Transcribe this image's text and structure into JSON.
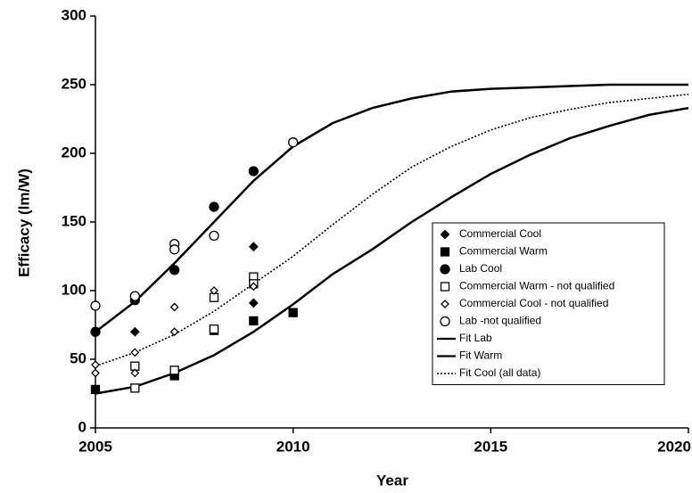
{
  "chart_data": {
    "type": "scatter",
    "x_label": "Year",
    "y_label": "Efficacy (lm/W)",
    "xlim": [
      2005,
      2020
    ],
    "xticks": [
      2005,
      2010,
      2015,
      2020
    ],
    "ylim": [
      0,
      300
    ],
    "yticks": [
      0,
      50,
      100,
      150,
      200,
      250,
      300
    ],
    "grid": false,
    "legend_position": "right",
    "series": [
      {
        "name": "Commercial Cool",
        "color": "#000000",
        "marker": "diamond",
        "filled": true,
        "x": [
          2006,
          2009,
          2009
        ],
        "values": [
          70,
          132,
          91
        ]
      },
      {
        "name": "Commercial Warm",
        "color": "#000000",
        "marker": "square",
        "filled": true,
        "x": [
          2005,
          2007,
          2008,
          2009,
          2010
        ],
        "values": [
          28,
          38,
          71,
          78,
          84
        ]
      },
      {
        "name": "Lab Cool",
        "color": "#000000",
        "marker": "circle",
        "filled": true,
        "x": [
          2005,
          2006,
          2007,
          2008,
          2009
        ],
        "values": [
          70,
          93,
          115,
          161,
          187
        ]
      },
      {
        "name": "Commercial Warm - not qualified",
        "color": "#000000",
        "marker": "square",
        "filled": false,
        "x": [
          2006,
          2006,
          2007,
          2008,
          2008,
          2009,
          2009
        ],
        "values": [
          29,
          45,
          42,
          72,
          95,
          110,
          105
        ]
      },
      {
        "name": "Commercial Cool - not qualified",
        "color": "#000000",
        "marker": "diamond",
        "filled": false,
        "x": [
          2005,
          2005,
          2006,
          2006,
          2007,
          2007,
          2008,
          2009
        ],
        "values": [
          46,
          40,
          40,
          55,
          88,
          70,
          100,
          103
        ]
      },
      {
        "name": "Lab -not qualified",
        "color": "#000000",
        "marker": "circle",
        "filled": false,
        "x": [
          2005,
          2006,
          2007,
          2007,
          2008,
          2010
        ],
        "values": [
          89,
          96,
          134,
          130,
          140,
          208
        ]
      },
      {
        "name": "Fit Lab",
        "color": "#000000",
        "line": "solid",
        "x": [
          2005,
          2006,
          2007,
          2008,
          2009,
          2010,
          2011,
          2012,
          2013,
          2014,
          2015,
          2016,
          2017,
          2018,
          2019,
          2020
        ],
        "values": [
          70,
          92,
          120,
          150,
          180,
          205,
          222,
          233,
          240,
          245,
          247,
          248,
          249,
          250,
          250,
          250
        ]
      },
      {
        "name": "Fit Warm",
        "color": "#000000",
        "line": "solid",
        "x": [
          2005,
          2006,
          2007,
          2008,
          2009,
          2010,
          2011,
          2012,
          2013,
          2014,
          2015,
          2016,
          2017,
          2018,
          2019,
          2020
        ],
        "values": [
          25,
          30,
          40,
          53,
          70,
          90,
          112,
          130,
          150,
          168,
          185,
          199,
          211,
          220,
          228,
          233
        ]
      },
      {
        "name": "Fit Cool (all data)",
        "color": "#000000",
        "line": "dotted",
        "x": [
          2005,
          2006,
          2007,
          2008,
          2009,
          2010,
          2011,
          2012,
          2013,
          2014,
          2015,
          2016,
          2017,
          2018,
          2019,
          2020
        ],
        "values": [
          45,
          55,
          68,
          85,
          105,
          125,
          148,
          170,
          190,
          205,
          217,
          226,
          232,
          237,
          240,
          243
        ]
      }
    ]
  }
}
